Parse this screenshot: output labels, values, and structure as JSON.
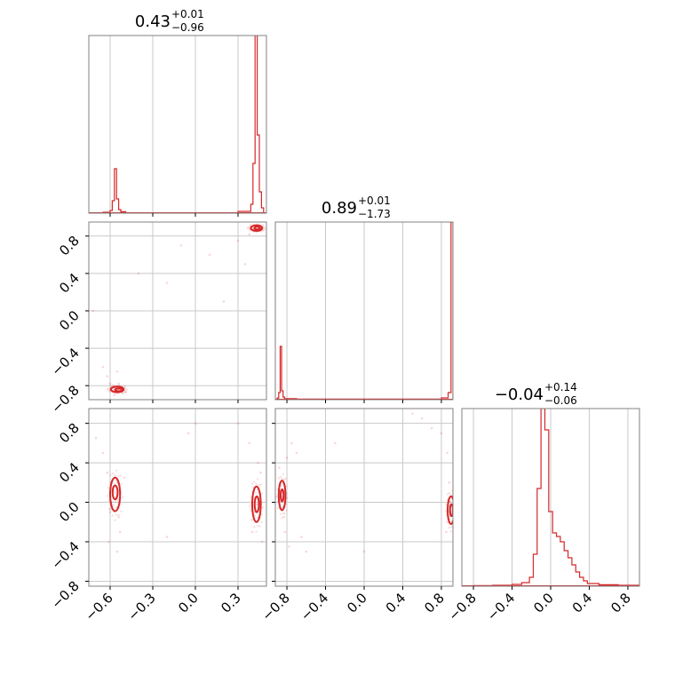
{
  "chart_data": {
    "type": "corner",
    "color": "#d62728",
    "grid": true,
    "panels": [
      {
        "id": "hist-0",
        "type": "histogram",
        "title": {
          "value": "0.43",
          "plus": "+0.01",
          "minus": "−0.96"
        },
        "xlim": [
          -0.75,
          0.5
        ],
        "ylim": [
          0,
          1.0
        ],
        "bins": [
          {
            "x0": -0.65,
            "x1": -0.6,
            "count": 0.005
          },
          {
            "x0": -0.6,
            "x1": -0.585,
            "count": 0.015
          },
          {
            "x0": -0.585,
            "x1": -0.57,
            "count": 0.07
          },
          {
            "x0": -0.57,
            "x1": -0.555,
            "count": 0.25
          },
          {
            "x0": -0.555,
            "x1": -0.54,
            "count": 0.08
          },
          {
            "x0": -0.54,
            "x1": -0.525,
            "count": 0.02
          },
          {
            "x0": -0.525,
            "x1": -0.49,
            "count": 0.008
          },
          {
            "x0": 0.3,
            "x1": 0.39,
            "count": 0.01
          },
          {
            "x0": 0.39,
            "x1": 0.405,
            "count": 0.05
          },
          {
            "x0": 0.405,
            "x1": 0.42,
            "count": 0.28
          },
          {
            "x0": 0.42,
            "x1": 0.435,
            "count": 1.0
          },
          {
            "x0": 0.435,
            "x1": 0.45,
            "count": 0.44
          },
          {
            "x0": 0.45,
            "x1": 0.465,
            "count": 0.12
          },
          {
            "x0": 0.465,
            "x1": 0.48,
            "count": 0.03
          }
        ]
      },
      {
        "id": "hist-1",
        "type": "histogram",
        "title": {
          "value": "0.89",
          "plus": "+0.01",
          "minus": "−1.73"
        },
        "xlim": [
          -0.92,
          0.92
        ],
        "ylim": [
          0,
          1.0
        ],
        "bins": [
          {
            "x0": -0.9,
            "x1": -0.885,
            "count": 0.01
          },
          {
            "x0": -0.885,
            "x1": -0.87,
            "count": 0.04
          },
          {
            "x0": -0.87,
            "x1": -0.855,
            "count": 0.3
          },
          {
            "x0": -0.855,
            "x1": -0.84,
            "count": 0.05
          },
          {
            "x0": -0.84,
            "x1": -0.825,
            "count": 0.015
          },
          {
            "x0": -0.825,
            "x1": -0.7,
            "count": 0.006
          },
          {
            "x0": -0.7,
            "x1": 0.8,
            "count": 0.003
          },
          {
            "x0": 0.8,
            "x1": 0.87,
            "count": 0.01
          },
          {
            "x0": 0.87,
            "x1": 0.9,
            "count": 0.04
          },
          {
            "x0": 0.9,
            "x1": 0.92,
            "count": 1.0
          }
        ]
      },
      {
        "id": "hist-2",
        "type": "histogram",
        "title": {
          "value": "−0.04",
          "plus": "+0.14",
          "minus": "−0.06"
        },
        "xlim": [
          -0.92,
          0.92
        ],
        "ylim": [
          0,
          1.0
        ],
        "bins": [
          {
            "x0": -0.8,
            "x1": -0.6,
            "count": 0.003
          },
          {
            "x0": -0.6,
            "x1": -0.4,
            "count": 0.005
          },
          {
            "x0": -0.4,
            "x1": -0.3,
            "count": 0.01
          },
          {
            "x0": -0.3,
            "x1": -0.22,
            "count": 0.02
          },
          {
            "x0": -0.22,
            "x1": -0.18,
            "count": 0.05
          },
          {
            "x0": -0.18,
            "x1": -0.14,
            "count": 0.18
          },
          {
            "x0": -0.14,
            "x1": -0.1,
            "count": 0.55
          },
          {
            "x0": -0.1,
            "x1": -0.06,
            "count": 1.0
          },
          {
            "x0": -0.06,
            "x1": -0.02,
            "count": 0.88
          },
          {
            "x0": -0.02,
            "x1": 0.02,
            "count": 0.42
          },
          {
            "x0": 0.02,
            "x1": 0.06,
            "count": 0.3
          },
          {
            "x0": 0.06,
            "x1": 0.1,
            "count": 0.28
          },
          {
            "x0": 0.1,
            "x1": 0.14,
            "count": 0.25
          },
          {
            "x0": 0.14,
            "x1": 0.18,
            "count": 0.2
          },
          {
            "x0": 0.18,
            "x1": 0.22,
            "count": 0.16
          },
          {
            "x0": 0.22,
            "x1": 0.26,
            "count": 0.12
          },
          {
            "x0": 0.26,
            "x1": 0.3,
            "count": 0.08
          },
          {
            "x0": 0.3,
            "x1": 0.34,
            "count": 0.05
          },
          {
            "x0": 0.34,
            "x1": 0.38,
            "count": 0.03
          },
          {
            "x0": 0.38,
            "x1": 0.5,
            "count": 0.015
          },
          {
            "x0": 0.5,
            "x1": 0.7,
            "count": 0.008
          },
          {
            "x0": 0.7,
            "x1": 0.92,
            "count": 0.005
          }
        ]
      },
      {
        "id": "scatter-1-0",
        "type": "density2d",
        "xlim": [
          -0.75,
          0.5
        ],
        "ylim": [
          -0.95,
          0.95
        ],
        "points": [
          [
            -0.56,
            -0.82
          ],
          [
            -0.55,
            -0.84
          ],
          [
            -0.53,
            -0.86
          ],
          [
            -0.51,
            -0.88
          ],
          [
            -0.58,
            -0.8
          ],
          [
            -0.6,
            -0.78
          ],
          [
            -0.62,
            -0.7
          ],
          [
            -0.57,
            -0.9
          ],
          [
            -0.49,
            -0.87
          ],
          [
            -0.54,
            -0.78
          ],
          [
            -0.65,
            -0.6
          ],
          [
            -0.55,
            -0.65
          ],
          [
            -0.4,
            0.4
          ],
          [
            -0.2,
            0.3
          ],
          [
            0.1,
            0.6
          ],
          [
            0.3,
            0.75
          ],
          [
            0.42,
            0.88
          ],
          [
            0.44,
            0.9
          ],
          [
            0.41,
            0.86
          ],
          [
            0.46,
            0.87
          ],
          [
            0.38,
            0.82
          ],
          [
            0.35,
            0.5
          ],
          [
            -0.1,
            0.7
          ],
          [
            -0.72,
            0.0
          ],
          [
            0.2,
            0.1
          ]
        ],
        "contours": [
          {
            "cx": -0.55,
            "cy": -0.84,
            "rx": 0.045,
            "ry": 0.03
          },
          {
            "cx": -0.54,
            "cy": -0.845,
            "rx": 0.025,
            "ry": 0.015
          },
          {
            "cx": 0.43,
            "cy": 0.885,
            "rx": 0.04,
            "ry": 0.03
          },
          {
            "cx": 0.435,
            "cy": 0.885,
            "rx": 0.02,
            "ry": 0.015
          }
        ]
      },
      {
        "id": "scatter-2-0",
        "type": "density2d",
        "xlim": [
          -0.75,
          0.5
        ],
        "ylim": [
          -0.85,
          0.95
        ],
        "points": [
          [
            -0.57,
            0.1
          ],
          [
            -0.56,
            0.05
          ],
          [
            -0.58,
            0.15
          ],
          [
            -0.55,
            0.2
          ],
          [
            -0.59,
            0.0
          ],
          [
            -0.6,
            -0.1
          ],
          [
            -0.54,
            -0.15
          ],
          [
            -0.62,
            0.3
          ],
          [
            -0.5,
            0.25
          ],
          [
            -0.65,
            0.5
          ],
          [
            -0.53,
            -0.3
          ],
          [
            -0.61,
            -0.4
          ],
          [
            -0.55,
            -0.5
          ],
          [
            0.43,
            -0.02
          ],
          [
            0.44,
            0.05
          ],
          [
            0.42,
            -0.1
          ],
          [
            0.45,
            -0.15
          ],
          [
            0.41,
            0.15
          ],
          [
            0.46,
            0.3
          ],
          [
            0.4,
            -0.3
          ],
          [
            0.38,
            0.6
          ],
          [
            0.3,
            0.8
          ],
          [
            -0.2,
            -0.35
          ],
          [
            0.0,
            0.8
          ],
          [
            -0.05,
            0.7
          ],
          [
            0.44,
            0.4
          ],
          [
            0.47,
            -0.4
          ],
          [
            -0.7,
            0.65
          ]
        ],
        "contours": [
          {
            "cx": -0.565,
            "cy": 0.08,
            "rx": 0.035,
            "ry": 0.17
          },
          {
            "cx": -0.565,
            "cy": 0.1,
            "rx": 0.018,
            "ry": 0.07
          },
          {
            "cx": 0.43,
            "cy": -0.02,
            "rx": 0.03,
            "ry": 0.18
          },
          {
            "cx": 0.432,
            "cy": -0.02,
            "rx": 0.015,
            "ry": 0.08
          }
        ]
      },
      {
        "id": "scatter-2-1",
        "type": "density2d",
        "xlim": [
          -0.92,
          0.92
        ],
        "ylim": [
          -0.85,
          0.95
        ],
        "points": [
          [
            -0.85,
            0.05
          ],
          [
            -0.86,
            0.1
          ],
          [
            -0.84,
            -0.05
          ],
          [
            -0.87,
            0.2
          ],
          [
            -0.83,
            -0.15
          ],
          [
            -0.88,
            0.35
          ],
          [
            -0.82,
            -0.3
          ],
          [
            -0.8,
            0.45
          ],
          [
            -0.78,
            -0.45
          ],
          [
            -0.7,
            0.5
          ],
          [
            -0.6,
            -0.5
          ],
          [
            -0.75,
            0.6
          ],
          [
            0.9,
            -0.1
          ],
          [
            0.89,
            0.0
          ],
          [
            0.91,
            -0.2
          ],
          [
            0.88,
            0.2
          ],
          [
            0.86,
            0.5
          ],
          [
            0.8,
            0.7
          ],
          [
            0.6,
            0.85
          ],
          [
            0.5,
            0.9
          ],
          [
            0.7,
            0.75
          ],
          [
            0.85,
            -0.3
          ],
          [
            -0.3,
            0.6
          ],
          [
            0.0,
            -0.5
          ],
          [
            -0.65,
            -0.35
          ]
        ],
        "contours": [
          {
            "cx": -0.85,
            "cy": 0.07,
            "rx": 0.035,
            "ry": 0.15
          },
          {
            "cx": -0.85,
            "cy": 0.07,
            "rx": 0.015,
            "ry": 0.06
          },
          {
            "cx": 0.9,
            "cy": -0.08,
            "rx": 0.035,
            "ry": 0.14
          },
          {
            "cx": 0.905,
            "cy": -0.08,
            "rx": 0.015,
            "ry": 0.06
          }
        ]
      }
    ],
    "axes": {
      "x0_ticks": [
        "−0.6",
        "−0.3",
        "0.0",
        "0.3"
      ],
      "x0_values": [
        -0.6,
        -0.3,
        0.0,
        0.3
      ],
      "x12_ticks": [
        "−0.8",
        "−0.4",
        "0.0",
        "0.4",
        "0.8"
      ],
      "x12_values": [
        -0.8,
        -0.4,
        0.0,
        0.4,
        0.8
      ],
      "y1_ticks": [
        "−0.8",
        "−0.4",
        "0.0",
        "0.4",
        "0.8"
      ],
      "y1_values": [
        -0.8,
        -0.4,
        0.0,
        0.4,
        0.8
      ],
      "y2_ticks": [
        "−0.8",
        "−0.4",
        "0.0",
        "0.4",
        "0.8"
      ],
      "y2_values": [
        -0.8,
        -0.4,
        0.0,
        0.4,
        0.8
      ]
    }
  }
}
